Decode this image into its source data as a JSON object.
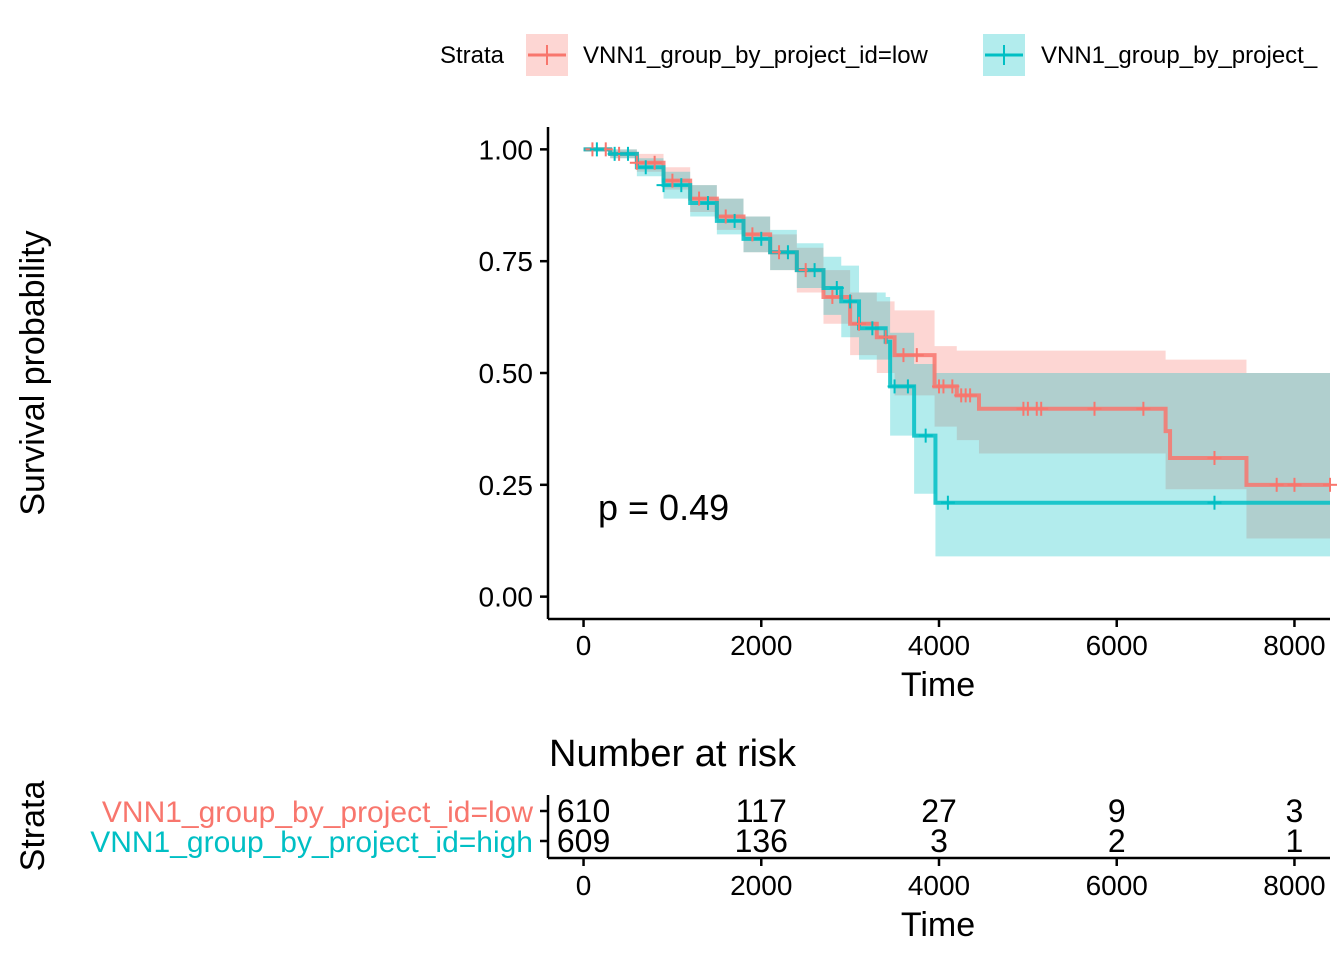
{
  "chart_data": [
    {
      "type": "line",
      "subtype": "kaplan-meier-step",
      "title": "",
      "xlabel": "Time",
      "ylabel": "Survival probability",
      "xlim": [
        -400,
        8400
      ],
      "ylim": [
        -0.05,
        1.05
      ],
      "x_ticks": [
        0,
        2000,
        4000,
        6000,
        8000
      ],
      "y_ticks": [
        0.0,
        0.25,
        0.5,
        0.75,
        1.0
      ],
      "y_tick_labels": [
        "0.00",
        "0.25",
        "0.50",
        "0.75",
        "1.00"
      ],
      "annotation": "p = 0.49",
      "legend": {
        "title": "Strata",
        "position": "top",
        "entries": [
          "VNN1_group_by_project_id=low",
          "VNN1_group_by_project_"
        ]
      },
      "series": [
        {
          "name": "VNN1_group_by_project_id=low",
          "color": "#F8766D",
          "fill": "#F8766D",
          "points": [
            [
              0,
              1.0
            ],
            [
              300,
              0.99
            ],
            [
              600,
              0.97
            ],
            [
              900,
              0.93
            ],
            [
              1200,
              0.89
            ],
            [
              1500,
              0.85
            ],
            [
              1800,
              0.81
            ],
            [
              2100,
              0.77
            ],
            [
              2400,
              0.73
            ],
            [
              2700,
              0.67
            ],
            [
              3000,
              0.61
            ],
            [
              3300,
              0.58
            ],
            [
              3500,
              0.54
            ],
            [
              3900,
              0.54
            ],
            [
              3950,
              0.47
            ],
            [
              4200,
              0.45
            ],
            [
              4450,
              0.42
            ],
            [
              6500,
              0.42
            ],
            [
              6550,
              0.37
            ],
            [
              6600,
              0.31
            ],
            [
              7450,
              0.31
            ],
            [
              7460,
              0.25
            ],
            [
              8400,
              0.25
            ]
          ],
          "lower": [
            [
              0,
              1.0
            ],
            [
              300,
              0.98
            ],
            [
              600,
              0.95
            ],
            [
              900,
              0.91
            ],
            [
              1200,
              0.86
            ],
            [
              1500,
              0.82
            ],
            [
              1800,
              0.77
            ],
            [
              2100,
              0.73
            ],
            [
              2400,
              0.68
            ],
            [
              2700,
              0.61
            ],
            [
              3000,
              0.54
            ],
            [
              3300,
              0.5
            ],
            [
              3500,
              0.45
            ],
            [
              3950,
              0.38
            ],
            [
              4200,
              0.35
            ],
            [
              4450,
              0.32
            ],
            [
              6550,
              0.24
            ],
            [
              7460,
              0.13
            ],
            [
              8400,
              0.13
            ]
          ],
          "upper": [
            [
              0,
              1.0
            ],
            [
              300,
              1.0
            ],
            [
              600,
              0.99
            ],
            [
              900,
              0.96
            ],
            [
              1200,
              0.92
            ],
            [
              1500,
              0.89
            ],
            [
              1800,
              0.85
            ],
            [
              2100,
              0.81
            ],
            [
              2400,
              0.78
            ],
            [
              2700,
              0.73
            ],
            [
              3000,
              0.68
            ],
            [
              3300,
              0.66
            ],
            [
              3500,
              0.64
            ],
            [
              3950,
              0.56
            ],
            [
              4200,
              0.55
            ],
            [
              6500,
              0.55
            ],
            [
              6550,
              0.53
            ],
            [
              7460,
              0.5
            ],
            [
              8400,
              0.5
            ]
          ],
          "censor": [
            100,
            250,
            400,
            600,
            800,
            1000,
            1300,
            1600,
            1900,
            2200,
            2500,
            2800,
            3100,
            3400,
            3600,
            3750,
            4000,
            4050,
            4150,
            4250,
            4300,
            4350,
            4950,
            5000,
            5100,
            5150,
            5750,
            6300,
            7100,
            7800,
            8000,
            8400
          ]
        },
        {
          "name": "VNN1_group_by_project_id=high",
          "color": "#00BFC4",
          "fill": "#00BFC4",
          "points": [
            [
              0,
              1.0
            ],
            [
              300,
              0.99
            ],
            [
              600,
              0.96
            ],
            [
              900,
              0.92
            ],
            [
              1200,
              0.88
            ],
            [
              1500,
              0.84
            ],
            [
              1800,
              0.8
            ],
            [
              2100,
              0.77
            ],
            [
              2400,
              0.73
            ],
            [
              2700,
              0.69
            ],
            [
              2900,
              0.66
            ],
            [
              3100,
              0.6
            ],
            [
              3400,
              0.57
            ],
            [
              3450,
              0.47
            ],
            [
              3700,
              0.47
            ],
            [
              3720,
              0.36
            ],
            [
              3950,
              0.36
            ],
            [
              3960,
              0.21
            ],
            [
              8400,
              0.21
            ]
          ],
          "lower": [
            [
              0,
              1.0
            ],
            [
              300,
              0.98
            ],
            [
              600,
              0.94
            ],
            [
              900,
              0.89
            ],
            [
              1200,
              0.85
            ],
            [
              1500,
              0.81
            ],
            [
              1800,
              0.77
            ],
            [
              2100,
              0.73
            ],
            [
              2400,
              0.69
            ],
            [
              2700,
              0.63
            ],
            [
              2900,
              0.58
            ],
            [
              3100,
              0.53
            ],
            [
              3450,
              0.36
            ],
            [
              3720,
              0.23
            ],
            [
              3960,
              0.09
            ],
            [
              8400,
              0.09
            ]
          ],
          "upper": [
            [
              0,
              1.0
            ],
            [
              300,
              1.0
            ],
            [
              600,
              0.98
            ],
            [
              900,
              0.95
            ],
            [
              1200,
              0.92
            ],
            [
              1500,
              0.89
            ],
            [
              1800,
              0.85
            ],
            [
              2100,
              0.82
            ],
            [
              2400,
              0.79
            ],
            [
              2700,
              0.76
            ],
            [
              2900,
              0.74
            ],
            [
              3100,
              0.68
            ],
            [
              3400,
              0.67
            ],
            [
              3450,
              0.59
            ],
            [
              3720,
              0.52
            ],
            [
              3960,
              0.5
            ],
            [
              8400,
              0.5
            ]
          ],
          "censor": [
            150,
            350,
            500,
            700,
            900,
            1100,
            1400,
            1700,
            2000,
            2300,
            2600,
            2850,
            3000,
            3250,
            3500,
            3650,
            3850,
            4100,
            7100
          ]
        }
      ]
    },
    {
      "type": "table",
      "title": "Number at risk",
      "xlabel": "Time",
      "ylabel": "Strata",
      "xlim": [
        -400,
        8400
      ],
      "x_ticks": [
        0,
        2000,
        4000,
        6000,
        8000
      ],
      "rows": [
        {
          "name": "VNN1_group_by_project_id=low",
          "color": "#F8766D",
          "values": [
            610,
            117,
            27,
            9,
            3
          ]
        },
        {
          "name": "VNN1_group_by_project_id=high",
          "color": "#00BFC4",
          "values": [
            609,
            136,
            3,
            2,
            1
          ]
        }
      ]
    }
  ]
}
